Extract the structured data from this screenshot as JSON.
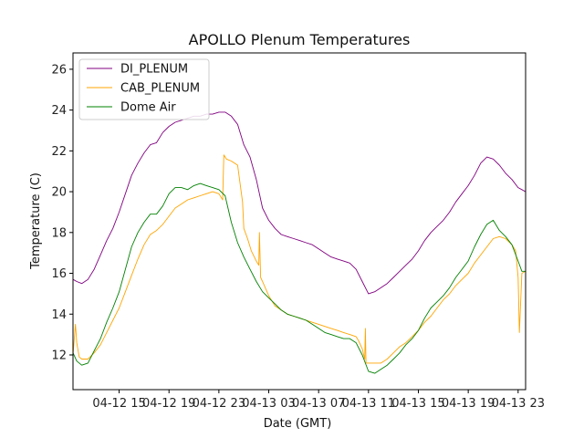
{
  "chart_data": {
    "type": "line",
    "title": "APOLLO Plenum Temperatures",
    "xlabel": "Date (GMT)",
    "ylabel": "Temperature (C)",
    "x_unit": "hours since 04-12 11:00 GMT",
    "xlim": [
      0.3,
      36.6
    ],
    "ylim": [
      10.3,
      26.8
    ],
    "x_ticks": [
      {
        "value": 4,
        "label": "04-12 15"
      },
      {
        "value": 8,
        "label": "04-12 19"
      },
      {
        "value": 12,
        "label": "04-12 23"
      },
      {
        "value": 16,
        "label": "04-13 03"
      },
      {
        "value": 20,
        "label": "04-13 07"
      },
      {
        "value": 24,
        "label": "04-13 11"
      },
      {
        "value": 28,
        "label": "04-13 15"
      },
      {
        "value": 32,
        "label": "04-13 19"
      },
      {
        "value": 36,
        "label": "04-13 23"
      }
    ],
    "y_ticks": [
      12,
      14,
      16,
      18,
      20,
      22,
      24,
      26
    ],
    "legend_position": "top-left",
    "series": [
      {
        "name": "DI_PLENUM",
        "color": "#800080",
        "x": [
          0.3,
          0.6,
          1.0,
          1.5,
          2.0,
          2.5,
          3.0,
          3.5,
          4.0,
          4.5,
          5.0,
          5.5,
          6.0,
          6.5,
          7.0,
          7.5,
          8.0,
          8.5,
          9.0,
          9.5,
          10.0,
          10.5,
          11.0,
          11.5,
          12.0,
          12.5,
          13.0,
          13.5,
          14.0,
          14.5,
          15.0,
          15.5,
          16.0,
          16.5,
          17.0,
          17.5,
          18.0,
          18.5,
          19.0,
          19.5,
          20.0,
          20.5,
          21.0,
          21.5,
          22.0,
          22.5,
          23.0,
          23.5,
          24.0,
          24.5,
          25.0,
          25.5,
          26.0,
          26.5,
          27.0,
          27.5,
          28.0,
          28.5,
          29.0,
          29.5,
          30.0,
          30.5,
          31.0,
          31.5,
          32.0,
          32.5,
          33.0,
          33.5,
          34.0,
          34.5,
          35.0,
          35.5,
          36.0,
          36.3,
          36.6
        ],
        "y": [
          15.7,
          15.6,
          15.5,
          15.7,
          16.2,
          16.9,
          17.6,
          18.2,
          19.0,
          19.9,
          20.8,
          21.4,
          21.9,
          22.3,
          22.4,
          22.9,
          23.2,
          23.4,
          23.5,
          23.6,
          23.7,
          23.7,
          23.8,
          23.8,
          23.9,
          23.9,
          23.7,
          23.3,
          22.3,
          21.7,
          20.6,
          19.2,
          18.6,
          18.2,
          17.9,
          17.8,
          17.7,
          17.6,
          17.5,
          17.4,
          17.2,
          17.0,
          16.8,
          16.7,
          16.6,
          16.5,
          16.2,
          15.6,
          15.0,
          15.1,
          15.3,
          15.5,
          15.8,
          16.1,
          16.4,
          16.7,
          17.1,
          17.6,
          18.0,
          18.3,
          18.6,
          19.0,
          19.5,
          19.9,
          20.3,
          20.8,
          21.4,
          21.7,
          21.6,
          21.3,
          20.9,
          20.6,
          20.2,
          20.1,
          20.0
        ]
      },
      {
        "name": "CAB_PLENUM",
        "color": "#FFA500",
        "x": [
          0.3,
          0.5,
          0.6,
          0.8,
          1.0,
          1.5,
          2.0,
          2.5,
          3.0,
          3.5,
          4.0,
          4.5,
          5.0,
          5.5,
          6.0,
          6.5,
          7.0,
          7.5,
          8.0,
          8.5,
          9.0,
          9.5,
          10.0,
          10.5,
          11.0,
          11.5,
          12.0,
          12.3,
          12.4,
          12.6,
          13.0,
          13.5,
          13.9,
          14.0,
          14.3,
          14.6,
          15.0,
          15.2,
          15.25,
          15.35,
          15.5,
          16.0,
          16.5,
          17.0,
          17.5,
          18.0,
          18.5,
          19.0,
          19.5,
          20.0,
          20.5,
          21.0,
          21.5,
          22.0,
          22.5,
          23.0,
          23.2,
          23.5,
          23.7,
          23.75,
          23.8,
          24.0,
          24.5,
          25.0,
          25.5,
          26.0,
          26.5,
          27.0,
          27.5,
          28.0,
          28.5,
          29.0,
          29.5,
          30.0,
          30.5,
          31.0,
          31.5,
          32.0,
          32.5,
          33.0,
          33.5,
          34.0,
          34.5,
          35.0,
          35.5,
          35.8,
          36.0,
          36.1,
          36.3,
          36.6
        ],
        "y": [
          12.0,
          13.5,
          12.6,
          11.9,
          11.8,
          11.8,
          12.1,
          12.5,
          13.1,
          13.7,
          14.3,
          15.1,
          15.9,
          16.7,
          17.4,
          17.9,
          18.1,
          18.4,
          18.8,
          19.2,
          19.4,
          19.6,
          19.7,
          19.8,
          19.9,
          20.0,
          19.9,
          19.6,
          21.8,
          21.6,
          21.5,
          21.3,
          19.5,
          18.2,
          17.7,
          17.1,
          16.6,
          16.4,
          18.0,
          15.8,
          15.6,
          14.9,
          14.4,
          14.2,
          14.0,
          13.9,
          13.8,
          13.7,
          13.6,
          13.5,
          13.4,
          13.3,
          13.2,
          13.1,
          13.0,
          12.9,
          12.7,
          12.3,
          11.8,
          13.3,
          11.6,
          11.6,
          11.6,
          11.6,
          11.8,
          12.1,
          12.4,
          12.6,
          12.9,
          13.2,
          13.6,
          13.9,
          14.3,
          14.7,
          15.0,
          15.4,
          15.7,
          16.0,
          16.5,
          16.9,
          17.3,
          17.7,
          17.8,
          17.7,
          17.4,
          17.1,
          15.8,
          13.1,
          16.0,
          16.1
        ]
      },
      {
        "name": "Dome Air",
        "color": "#008000",
        "x": [
          0.3,
          0.6,
          1.0,
          1.5,
          2.0,
          2.5,
          3.0,
          3.5,
          4.0,
          4.5,
          5.0,
          5.5,
          6.0,
          6.5,
          7.0,
          7.5,
          8.0,
          8.5,
          9.0,
          9.5,
          10.0,
          10.5,
          11.0,
          11.5,
          12.0,
          12.5,
          13.0,
          13.5,
          14.0,
          14.5,
          15.0,
          15.5,
          16.0,
          16.5,
          17.0,
          17.5,
          18.0,
          18.5,
          19.0,
          19.5,
          20.0,
          20.5,
          21.0,
          21.5,
          22.0,
          22.5,
          23.0,
          23.5,
          24.0,
          24.5,
          25.0,
          25.5,
          26.0,
          26.5,
          27.0,
          27.5,
          28.0,
          28.5,
          29.0,
          29.5,
          30.0,
          30.5,
          31.0,
          31.5,
          32.0,
          32.5,
          33.0,
          33.5,
          34.0,
          34.5,
          35.0,
          35.5,
          36.0,
          36.3,
          36.6
        ],
        "y": [
          12.1,
          11.7,
          11.5,
          11.6,
          12.2,
          12.8,
          13.6,
          14.3,
          15.1,
          16.2,
          17.3,
          18.0,
          18.5,
          18.9,
          18.9,
          19.3,
          19.9,
          20.2,
          20.2,
          20.1,
          20.3,
          20.4,
          20.3,
          20.2,
          20.1,
          19.8,
          18.5,
          17.5,
          16.8,
          16.2,
          15.6,
          15.1,
          14.8,
          14.5,
          14.2,
          14.0,
          13.9,
          13.8,
          13.7,
          13.5,
          13.3,
          13.1,
          13.0,
          12.9,
          12.8,
          12.8,
          12.6,
          12.0,
          11.2,
          11.1,
          11.3,
          11.5,
          11.8,
          12.1,
          12.5,
          12.8,
          13.2,
          13.8,
          14.3,
          14.6,
          14.9,
          15.3,
          15.8,
          16.2,
          16.6,
          17.3,
          17.9,
          18.4,
          18.6,
          18.1,
          17.8,
          17.4,
          16.6,
          16.1,
          16.1
        ]
      }
    ]
  }
}
